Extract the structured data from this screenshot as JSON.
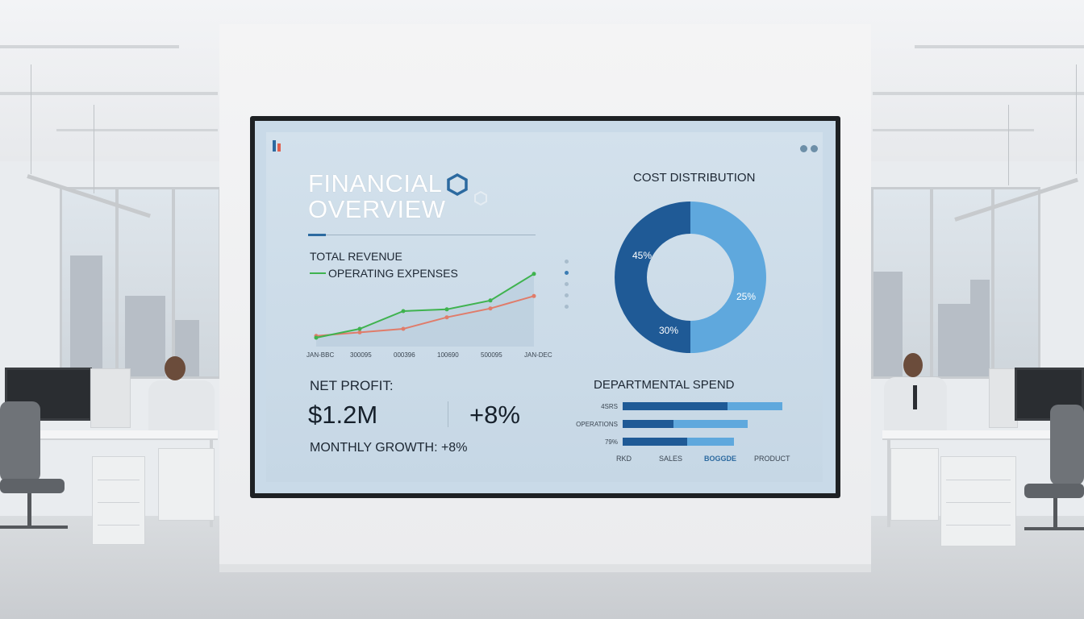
{
  "dashboard": {
    "title_line1": "FINANCIAL",
    "title_line2": "OVERVIEW",
    "legend": {
      "total_revenue": "TOTAL REVENUE",
      "operating_expenses": "OPERATING EXPENSES"
    },
    "line_chart": {
      "x_ticks": [
        "JAN-BBC",
        "300095",
        "000396",
        "100690",
        "500095",
        "JAN-DEC"
      ]
    },
    "cost_distribution": {
      "title": "COST DISTRIBUTION"
    },
    "net_profit": {
      "label": "NET PROFIT:",
      "value": "$1.2M",
      "growth": "+8%",
      "monthly_growth": "MONTHLY GROWTH: +8%"
    },
    "departmental_spend": {
      "title": "DEPARTMENTAL SPEND",
      "axis_labels": [
        "RKD",
        "SALES",
        "BOGGDE",
        "PRODUCT"
      ]
    }
  },
  "chart_data": [
    {
      "type": "line",
      "x": [
        "JAN-BBC",
        "300095",
        "000396",
        "100690",
        "500095",
        "JAN-DEC"
      ],
      "series": [
        {
          "name": "TOTAL REVENUE",
          "color": "#3fb34f",
          "values": [
            10,
            20,
            40,
            42,
            52,
            82
          ]
        },
        {
          "name": "OPERATING EXPENSES",
          "color": "#e07c6a",
          "values": [
            12,
            16,
            20,
            33,
            43,
            57
          ]
        }
      ],
      "ylim": [
        0,
        100
      ]
    },
    {
      "type": "pie",
      "title": "COST DISTRIBUTION",
      "slices": [
        {
          "label": "45%",
          "value": 45,
          "color": "#1f5a96"
        },
        {
          "label": "25%",
          "value": 25,
          "color": "#5fa8dd"
        },
        {
          "label": "30%",
          "value": 30,
          "color": "#5fa8dd"
        }
      ]
    },
    {
      "type": "bar",
      "title": "DEPARTMENTAL SPEND",
      "orientation": "horizontal",
      "categories": [
        "4SRS",
        "OPERATIONS",
        "79%"
      ],
      "series": [
        {
          "color": "#1f5a96",
          "values": [
            52,
            25,
            32
          ]
        },
        {
          "color": "#5fa8dd",
          "values": [
            27,
            37,
            23
          ]
        }
      ],
      "xlim": [
        0,
        80
      ],
      "xlabels": [
        "RKD",
        "SALES",
        "BOGGDE",
        "PRODUCT"
      ]
    }
  ],
  "colors": {
    "accent_dark": "#1f5a96",
    "accent_light": "#5fa8dd",
    "revenue_line": "#3fb34f",
    "expense_line": "#e07c6a"
  }
}
